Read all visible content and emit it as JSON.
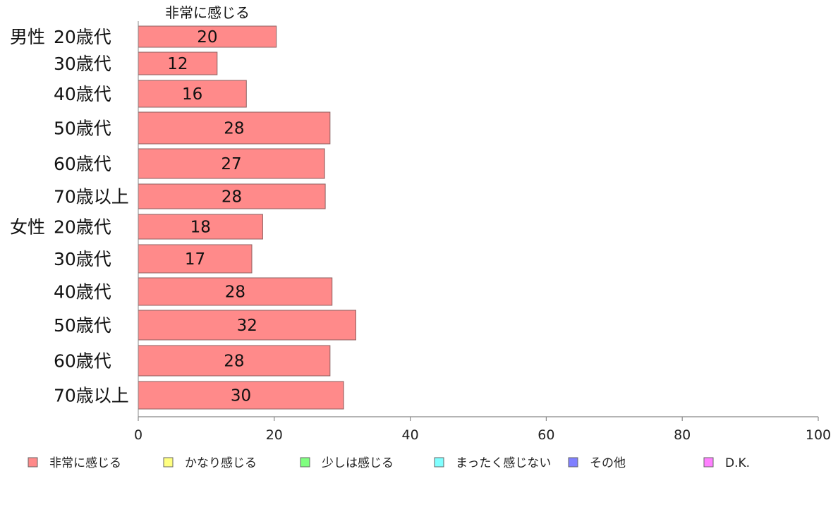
{
  "chart_data": {
    "type": "bar",
    "orientation": "horizontal",
    "stacked": true,
    "column_header": "非常に感じる",
    "groups": [
      {
        "label": "男性",
        "start_index": 0
      },
      {
        "label": "女性",
        "start_index": 6
      }
    ],
    "categories": [
      "20歳代",
      "30歳代",
      "40歳代",
      "50歳代",
      "60歳代",
      "70歳以上",
      "20歳代",
      "30歳代",
      "40歳代",
      "50歳代",
      "60歳代",
      "70歳以上"
    ],
    "series": [
      {
        "name": "非常に感じる",
        "color": "#ff8a8a",
        "values": [
          20.3,
          11.6,
          15.9,
          28.2,
          27.4,
          27.5,
          18.3,
          16.7,
          28.5,
          32.0,
          28.2,
          30.2
        ],
        "labels": [
          "20",
          "12",
          "16",
          "28",
          "27",
          "28",
          "18",
          "17",
          "28",
          "32",
          "28",
          "30"
        ]
      }
    ],
    "legend": [
      {
        "name": "非常に感じる",
        "color": "#ff8a8a"
      },
      {
        "name": "かなり感じる",
        "color": "#ffff80"
      },
      {
        "name": "少しは感じる",
        "color": "#80ff80"
      },
      {
        "name": "まったく感じない",
        "color": "#80ffff"
      },
      {
        "name": "その他",
        "color": "#8080ff"
      },
      {
        "name": "D.K.",
        "color": "#ff80ff"
      }
    ],
    "legend_position": "bottom",
    "xlim": [
      0,
      100
    ],
    "xticks": [
      0,
      20,
      40,
      60,
      80,
      100
    ],
    "grid": false
  }
}
